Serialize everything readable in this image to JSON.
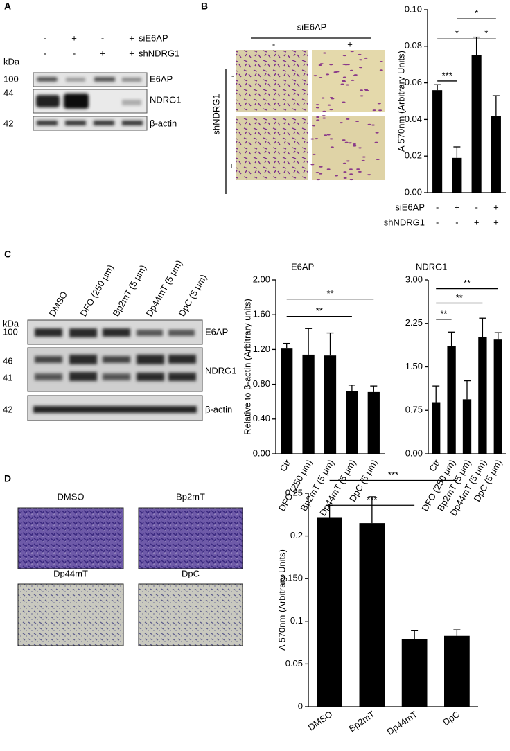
{
  "panels": {
    "a": {
      "letter": "A",
      "rows": [
        {
          "name": "siE6AP",
          "values": [
            "-",
            "+",
            "-",
            "+"
          ]
        },
        {
          "name": "shNDRG1",
          "values": [
            "-",
            "-",
            "+",
            "+"
          ]
        }
      ],
      "kda": "kDa",
      "markers": [
        "100",
        "44",
        "42"
      ],
      "bands": [
        "E6AP",
        "NDRG1",
        "β-actin"
      ]
    },
    "b": {
      "letter": "B",
      "treatment": "siE6AP",
      "columns": [
        "-",
        "+"
      ],
      "row_label": "shNDRG1",
      "rows": [
        "-",
        "+"
      ]
    },
    "c": {
      "letter": "C",
      "lanes": [
        "DMSO",
        "DFO (250 μm)",
        "Bp2mT (5 μm)",
        "Dp44mT (5 μm)",
        "DpC (5 μm)"
      ],
      "kda": "kDa",
      "markers": [
        "100",
        "46",
        "41",
        "42"
      ],
      "bands": [
        "E6AP",
        "NDRG1",
        "β-actin"
      ]
    },
    "d": {
      "letter": "D",
      "images": [
        "DMSO",
        "Bp2mT",
        "Dp44mT",
        "DpC"
      ]
    }
  },
  "chart_data": [
    {
      "type": "bar",
      "y_label": "A 570nm (Arbitrary Units)",
      "categories": [
        null,
        null,
        null,
        null
      ],
      "conditions": [
        {
          "name": "siE6AP",
          "values": [
            "-",
            "+",
            "-",
            "+"
          ]
        },
        {
          "name": "shNDRG1",
          "values": [
            "-",
            "-",
            "+",
            "+"
          ]
        }
      ],
      "values": [
        0.056,
        0.019,
        0.075,
        0.042
      ],
      "errors": [
        0.003,
        0.006,
        0.01,
        0.011
      ],
      "color": "#000000",
      "ylim": [
        0,
        0.1
      ],
      "yticks": [
        {
          "value": 0,
          "label": "0.00"
        },
        0.02,
        0.04,
        0.06,
        0.08,
        {
          "value": 0.1,
          "label": "0.10"
        }
      ],
      "significance": [
        "***",
        "*",
        "*",
        "*"
      ]
    },
    {
      "type": "bar",
      "title": "E6AP",
      "y_label": "Relative to β-actin (Arbitrary units)",
      "categories": [
        "Ctr",
        "DFO (250 μm)",
        "Bp2mT (5 μm)",
        "Dp44mT (5 μm)",
        "DpC (5 μm)"
      ],
      "values": [
        1.21,
        1.14,
        1.13,
        0.72,
        0.71
      ],
      "errors": [
        0.06,
        0.3,
        0.26,
        0.07,
        0.07
      ],
      "color": "#000000",
      "ylim": [
        0,
        2
      ],
      "yticks": [
        {
          "value": 0,
          "label": "0.00"
        },
        {
          "value": 0.4,
          "label": "0.40"
        },
        {
          "value": 0.8,
          "label": "0.80"
        },
        {
          "value": 1.2,
          "label": "1.20"
        },
        {
          "value": 1.6,
          "label": "1.60"
        },
        {
          "value": 2,
          "label": "2.00"
        }
      ],
      "significance": [
        "**",
        "**"
      ]
    },
    {
      "type": "bar",
      "title": "NDRG1",
      "categories": [
        "Ctr",
        "DFO (250 μm)",
        "Bp2mT (5 μm)",
        "Dp44mT (5 μm)",
        "DpC (5 μm)"
      ],
      "values": [
        0.89,
        1.86,
        0.94,
        2.02,
        1.97
      ],
      "errors": [
        0.28,
        0.24,
        0.32,
        0.32,
        0.12
      ],
      "color": "#000000",
      "ylim": [
        0,
        3
      ],
      "yticks": [
        {
          "value": 0,
          "label": "0.00"
        },
        0.75,
        {
          "value": 1.5,
          "label": "1.50"
        },
        2.25,
        {
          "value": 3,
          "label": "3.00"
        }
      ],
      "significance": [
        "**",
        "**",
        "**"
      ]
    },
    {
      "type": "bar",
      "y_label": "A 570nm (Arbitrary Units)",
      "categories": [
        "DMSO",
        "Bp2mT",
        "Dp44mT",
        "DpC"
      ],
      "values": [
        0.222,
        0.215,
        0.079,
        0.083
      ],
      "errors": [
        0.014,
        0.031,
        0.01,
        0.007
      ],
      "color": "#000000",
      "ylim": [
        0,
        0.25
      ],
      "yticks": [
        0,
        0.05,
        0.1,
        {
          "value": 0.15,
          "label": "0.150"
        },
        0.2,
        0.25
      ],
      "significance": [
        "***",
        "***"
      ]
    }
  ]
}
